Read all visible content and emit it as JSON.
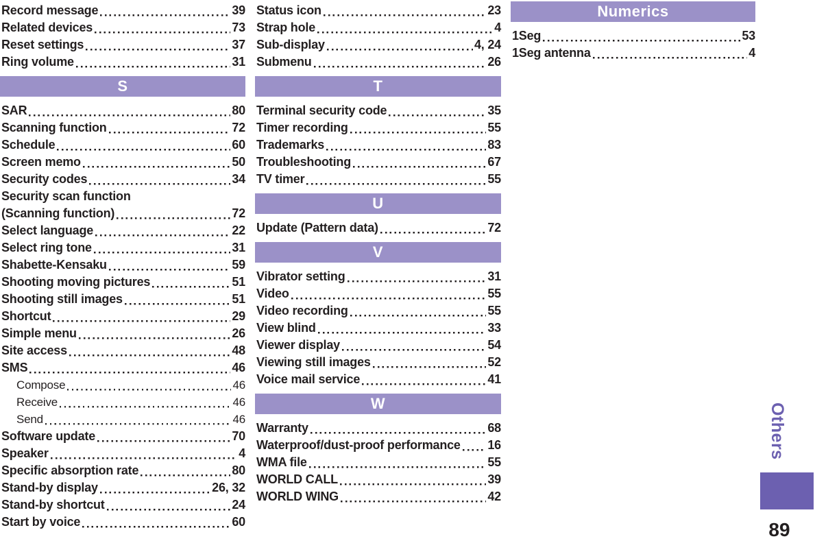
{
  "sidebar": {
    "tab_label": "Others",
    "page_number": "89"
  },
  "colors": {
    "section_header_bg": "#9b91c8",
    "section_header_text": "#ffffff",
    "accent_purple": "#6c60b0",
    "text": "#231f20"
  },
  "index": {
    "columns": [
      {
        "blocks": [
          {
            "type": "entries",
            "entries": [
              {
                "label": "Record message",
                "page": "39"
              },
              {
                "label": "Related devices",
                "page": "73"
              },
              {
                "label": "Reset settings",
                "page": "37"
              },
              {
                "label": "Ring volume",
                "page": "31"
              }
            ]
          },
          {
            "type": "section",
            "letter": "S"
          },
          {
            "type": "entries",
            "entries": [
              {
                "label": "SAR",
                "page": "80"
              },
              {
                "label": "Scanning function",
                "page": "72"
              },
              {
                "label": "Schedule",
                "page": "60"
              },
              {
                "label": "Screen memo",
                "page": "50"
              },
              {
                "label": "Security codes",
                "page": "34"
              },
              {
                "label": "Security scan function",
                "page": null
              },
              {
                "label": "(Scanning function)",
                "page": "72"
              },
              {
                "label": "Select language",
                "page": "22"
              },
              {
                "label": "Select ring tone",
                "page": "31"
              },
              {
                "label": "Shabette-Kensaku",
                "page": "59"
              },
              {
                "label": "Shooting moving pictures",
                "page": "51"
              },
              {
                "label": "Shooting still images",
                "page": "51"
              },
              {
                "label": "Shortcut",
                "page": "29"
              },
              {
                "label": "Simple menu",
                "page": "26"
              },
              {
                "label": "Site access",
                "page": "48"
              },
              {
                "label": "SMS",
                "page": "46"
              },
              {
                "label": "Compose",
                "page": "46",
                "sub": true
              },
              {
                "label": "Receive",
                "page": "46",
                "sub": true
              },
              {
                "label": "Send",
                "page": "46",
                "sub": true
              },
              {
                "label": "Software update",
                "page": "70"
              },
              {
                "label": "Speaker",
                "page": "4"
              },
              {
                "label": "Specific absorption rate",
                "page": "80"
              },
              {
                "label": "Stand-by display",
                "page": "26, 32"
              },
              {
                "label": "Stand-by shortcut",
                "page": "24"
              },
              {
                "label": "Start by voice",
                "page": "60"
              }
            ]
          }
        ]
      },
      {
        "blocks": [
          {
            "type": "entries",
            "entries": [
              {
                "label": "Status icon",
                "page": "23"
              },
              {
                "label": "Strap hole",
                "page": "4"
              },
              {
                "label": "Sub-display",
                "page": "4, 24"
              },
              {
                "label": "Submenu",
                "page": "26"
              }
            ]
          },
          {
            "type": "section",
            "letter": "T"
          },
          {
            "type": "entries",
            "entries": [
              {
                "label": "Terminal security code",
                "page": "35"
              },
              {
                "label": "Timer recording",
                "page": "55"
              },
              {
                "label": "Trademarks",
                "page": "83"
              },
              {
                "label": "Troubleshooting",
                "page": "67"
              },
              {
                "label": "TV timer",
                "page": "55"
              }
            ]
          },
          {
            "type": "section",
            "letter": "U"
          },
          {
            "type": "entries",
            "entries": [
              {
                "label": "Update (Pattern data)",
                "page": "72"
              }
            ]
          },
          {
            "type": "section",
            "letter": "V"
          },
          {
            "type": "entries",
            "entries": [
              {
                "label": "Vibrator setting",
                "page": "31"
              },
              {
                "label": "Video",
                "page": "55"
              },
              {
                "label": "Video recording",
                "page": "55"
              },
              {
                "label": "View blind",
                "page": "33"
              },
              {
                "label": "Viewer display",
                "page": "54"
              },
              {
                "label": "Viewing still images",
                "page": "52"
              },
              {
                "label": "Voice mail service",
                "page": "41"
              }
            ]
          },
          {
            "type": "section",
            "letter": "W"
          },
          {
            "type": "entries",
            "entries": [
              {
                "label": "Warranty",
                "page": "68"
              },
              {
                "label": "Waterproof/dust-proof performance",
                "page": "16"
              },
              {
                "label": "WMA file",
                "page": "55"
              },
              {
                "label": "WORLD CALL",
                "page": "39"
              },
              {
                "label": "WORLD WING",
                "page": "42"
              }
            ]
          }
        ]
      },
      {
        "blocks": [
          {
            "type": "section",
            "letter": "Numerics"
          },
          {
            "type": "entries",
            "entries": [
              {
                "label": "1Seg",
                "page": "53"
              },
              {
                "label": "1Seg antenna",
                "page": "4"
              }
            ]
          }
        ]
      }
    ]
  }
}
